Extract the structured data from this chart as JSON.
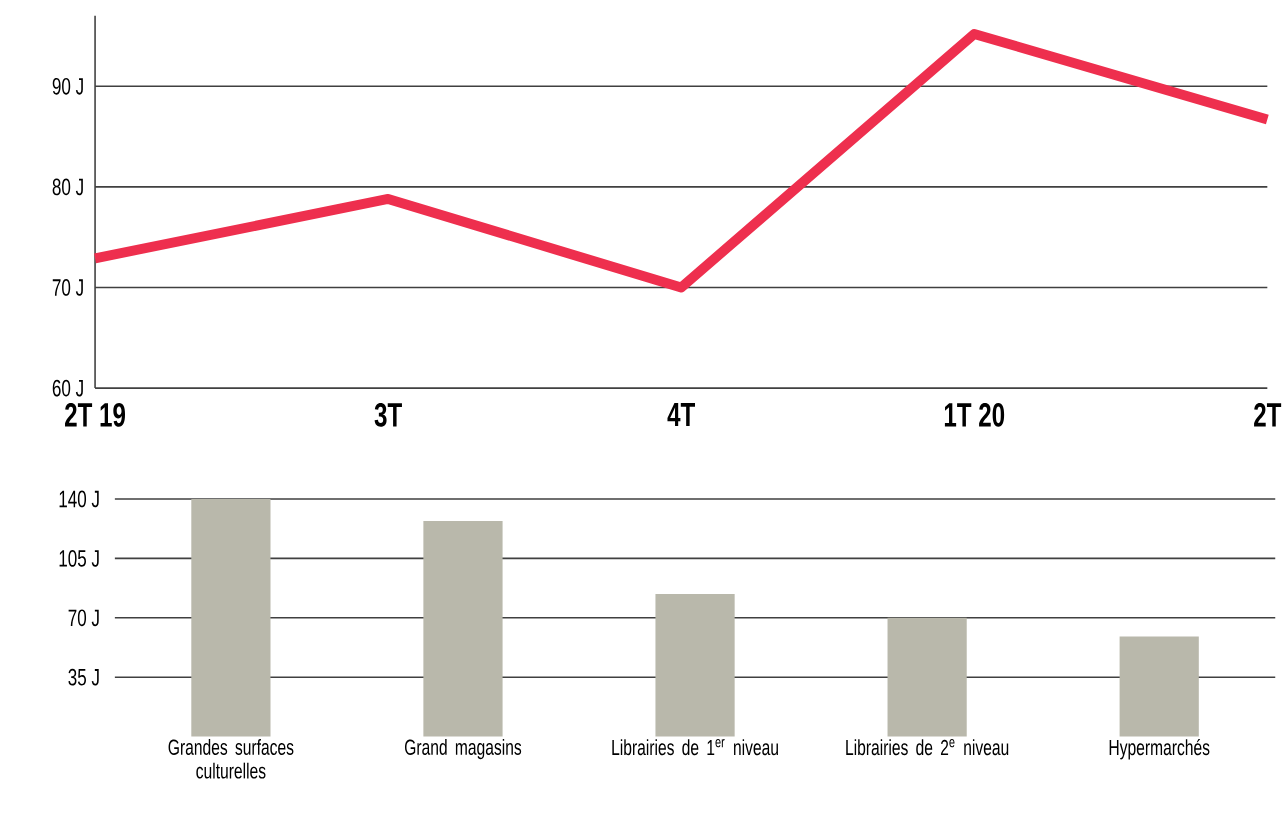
{
  "chart_data": [
    {
      "type": "line",
      "categories": [
        "2T 19",
        "3T",
        "4T",
        "1T 20",
        "2T"
      ],
      "series": [
        {
          "color": "#ee2f4e",
          "values": [
            72.9,
            78.8,
            70,
            95.2,
            86.7
          ]
        }
      ],
      "ylim": [
        60,
        97
      ],
      "yticks": [
        {
          "value": 60,
          "label": "60 J"
        },
        {
          "value": 70,
          "label": "70 J"
        },
        {
          "value": 80,
          "label": "80 J"
        },
        {
          "value": 90,
          "label": "90 J"
        }
      ],
      "grid": "y"
    },
    {
      "type": "bar",
      "categories": [
        "Grandes surfaces culturelles",
        "Grand magasins",
        "Librairies de 1$^{er}$ niveau",
        "Librairies de 2$^{e}$ niveau",
        "Hypermarchés"
      ],
      "series": [
        {
          "color": "#b9b8ab",
          "values": [
            140,
            127,
            84,
            70,
            59
          ]
        }
      ],
      "ylim": [
        0,
        140
      ],
      "yticks": [
        {
          "value": 35,
          "label": "35 J"
        },
        {
          "value": 70,
          "label": "70 J"
        },
        {
          "value": 105,
          "label": "105 J"
        },
        {
          "value": 140,
          "label": "140 J"
        }
      ],
      "grid": "y"
    }
  ]
}
